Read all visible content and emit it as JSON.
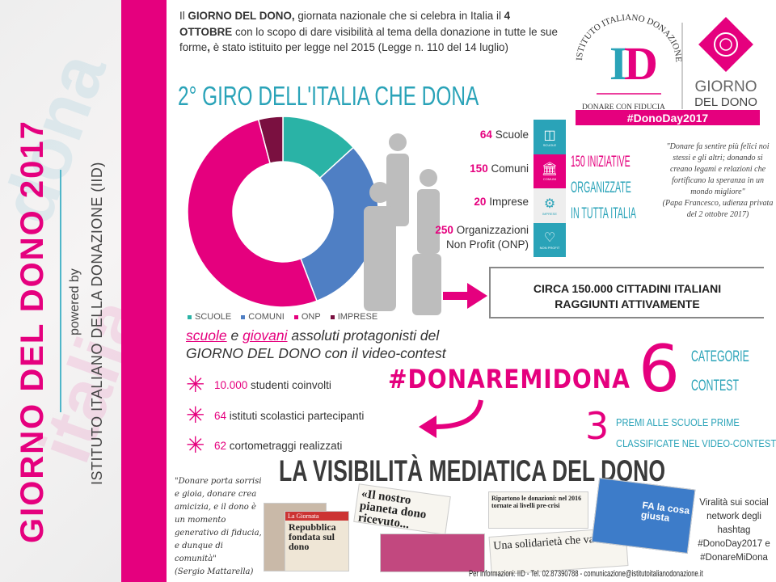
{
  "sidebar": {
    "title": "GIORNO DEL DONO 2017",
    "powered_by": "powered by",
    "organization": "ISTITUTO ITALIANO DELLA DONAZIONE (IID)"
  },
  "intro": {
    "p1": "Il ",
    "b1": "GIORNO DEL DONO,",
    "p2": " giornata nazionale che si celebra in Italia il ",
    "b2": "4 OTTOBRE",
    "p3": " con lo scopo di dare visibilità al tema della donazione in tutte le sue forme",
    "b3": ",",
    "p4": " è stato istituito per legge nel 2015 (Legge n. 110 del 14 luglio)"
  },
  "logo": {
    "arc_text": "ISTITUTO ITALIANO DONAZIONE",
    "monogram": "ID",
    "tagline": "DONARE CON FIDUCIA",
    "event_line1": "GIORNO",
    "event_line2": "DEL DONO",
    "hashtag": "#DonoDay2017"
  },
  "giro_title": "2° GIRO DELL'ITALIA CHE DONA",
  "chart_data": {
    "type": "pie",
    "donut": true,
    "categories": [
      "SCUOLE",
      "COMUNI",
      "ONP",
      "IMPRESE"
    ],
    "values": [
      64,
      150,
      250,
      20
    ],
    "colors": [
      "#2ab3a6",
      "#4f7fc4",
      "#e5007e",
      "#7a1040"
    ],
    "legend": "bottom"
  },
  "stats": [
    {
      "num": "64",
      "label": "Scuole"
    },
    {
      "num": "150",
      "label": "Comuni"
    },
    {
      "num": "20",
      "label": "Imprese"
    },
    {
      "num": "250",
      "label": "Organizzazioni",
      "label2": "Non Profit (ONP)"
    }
  ],
  "icons": [
    {
      "icon": "book-icon",
      "caption": "SCUOLE",
      "color": "#2aa3b8"
    },
    {
      "icon": "building-icon",
      "caption": "COMUNI",
      "color": "#e5007e"
    },
    {
      "icon": "gears-icon",
      "caption": "IMPRESE",
      "color": "#eeeeee"
    },
    {
      "icon": "heart-icon",
      "caption": "NON PROFIT",
      "color": "#2aa3b8"
    }
  ],
  "initiatives": [
    "150 INIZIATIVE",
    "ORGANIZZATE",
    "IN TUTTA ITALIA"
  ],
  "quote_pope": {
    "text": "\"Donare fa sentire più felici noi stessi e gli altri; donando si creano legami e relazioni che fortificano la speranza in un mondo migliore\"",
    "source": "(Papa Francesco, udienza privata del 2 ottobre 2017)"
  },
  "reach": [
    "CIRCA 150.000 CITTADINI ITALIANI",
    "RAGGIUNTI ATTIVAMENTE"
  ],
  "protagonists": {
    "w1": "scuole",
    "w2": " e ",
    "w3": "giovani",
    "w4": " assoluti protagonisti del",
    "line2": "GIORNO DEL DONO con il video-contest"
  },
  "contest_items": [
    {
      "num": "10.000",
      "text": " studenti coinvolti"
    },
    {
      "num": "64",
      "text": " istituti scolastici partecipanti"
    },
    {
      "num": "62",
      "text": " cortometraggi realizzati"
    }
  ],
  "hashtag": "#DONAREMIDONA",
  "categories": {
    "num": "6",
    "l1": "CATEGORIE",
    "l2": "CONTEST"
  },
  "prizes": {
    "num": "3",
    "l1": "PREMI ALLE SCUOLE PRIME",
    "l2": "CLASSIFICATE NEL VIDEO-CONTEST"
  },
  "media_title": "LA VISIBILITÀ MEDIATICA DEL DONO",
  "quote_mattarella": {
    "text": "\"Donare porta sorrisi e gioia, donare crea amicizia, e il dono è un momento generativo di fiducia, e dunque di comunità\"",
    "source": "(Sergio Mattarella)"
  },
  "clippings": {
    "giornata": "La Giornata",
    "repubblica": "Repubblica fondata sul dono",
    "pianeta": "«Il nostro pianeta dono ricevuto...",
    "ripartono": "Ripartono le donazioni: nel 2016 tornate ai livelli pre-crisi",
    "solidarieta": "Una solidarietà che va oltre le emergenze",
    "tv": "FA la cosa giusta"
  },
  "virality": [
    "Viralità sui social",
    "network degli",
    "hashtag",
    "#DonoDay2017 e",
    "#DonareMiDona"
  ],
  "footer": "Per informazioni: IID - Tel. 02.87390788 - comunicazione@istitutoitalianodonazione.it"
}
